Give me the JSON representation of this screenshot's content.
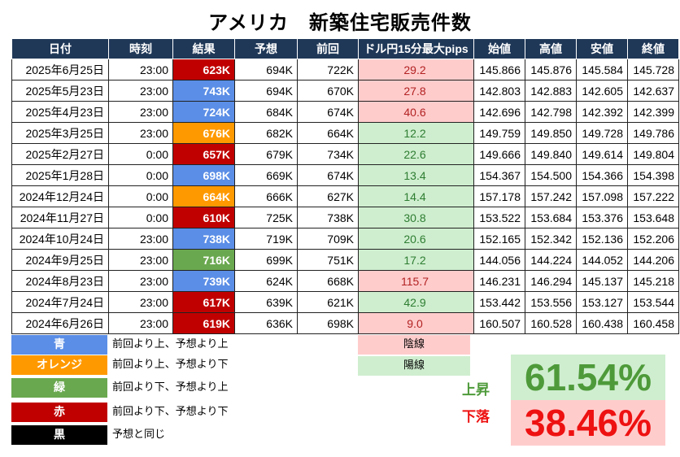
{
  "title": "アメリカ　新築住宅販売件数",
  "headers": [
    "日付",
    "時刻",
    "結果",
    "予想",
    "前回",
    "ドル円15分最大pips",
    "始値",
    "高値",
    "安値",
    "終値"
  ],
  "colors": {
    "blue": "#5b8ee6",
    "orange": "#ff9900",
    "green": "#6aa84f",
    "red": "#c00000",
    "black": "#000000",
    "header": "#1f3858",
    "yin_bg": "#ffcccc",
    "yin_text": "#b22222",
    "yang_bg": "#cfeecf",
    "yang_text": "#2e7d32",
    "up_text": "#4e9a3a",
    "down_text": "#ee1111"
  },
  "rows": [
    {
      "date": "2025年6月25日",
      "time": "23:00",
      "result": "623K",
      "result_color": "red",
      "forecast": "694K",
      "previous": "722K",
      "pips": "29.2",
      "candle": "yin",
      "open": "145.866",
      "high": "145.876",
      "low": "145.584",
      "close": "145.728"
    },
    {
      "date": "2025年5月23日",
      "time": "23:00",
      "result": "743K",
      "result_color": "blue",
      "forecast": "694K",
      "previous": "670K",
      "pips": "27.8",
      "candle": "yin",
      "open": "142.803",
      "high": "142.883",
      "low": "142.605",
      "close": "142.637"
    },
    {
      "date": "2025年4月23日",
      "time": "23:00",
      "result": "724K",
      "result_color": "blue",
      "forecast": "684K",
      "previous": "674K",
      "pips": "40.6",
      "candle": "yin",
      "open": "142.696",
      "high": "142.798",
      "low": "142.392",
      "close": "142.399"
    },
    {
      "date": "2025年3月25日",
      "time": "23:00",
      "result": "676K",
      "result_color": "orange",
      "forecast": "682K",
      "previous": "664K",
      "pips": "12.2",
      "candle": "yang",
      "open": "149.759",
      "high": "149.850",
      "low": "149.728",
      "close": "149.786"
    },
    {
      "date": "2025年2月27日",
      "time": "0:00",
      "result": "657K",
      "result_color": "red",
      "forecast": "679K",
      "previous": "734K",
      "pips": "22.6",
      "candle": "yang",
      "open": "149.666",
      "high": "149.840",
      "low": "149.614",
      "close": "149.804"
    },
    {
      "date": "2025年1月28日",
      "time": "0:00",
      "result": "698K",
      "result_color": "blue",
      "forecast": "669K",
      "previous": "674K",
      "pips": "13.4",
      "candle": "yang",
      "open": "154.367",
      "high": "154.500",
      "low": "154.366",
      "close": "154.398"
    },
    {
      "date": "2024年12月24日",
      "time": "0:00",
      "result": "664K",
      "result_color": "orange",
      "forecast": "666K",
      "previous": "627K",
      "pips": "14.4",
      "candle": "yang",
      "open": "157.178",
      "high": "157.242",
      "low": "157.098",
      "close": "157.222"
    },
    {
      "date": "2024年11月27日",
      "time": "0:00",
      "result": "610K",
      "result_color": "red",
      "forecast": "725K",
      "previous": "738K",
      "pips": "30.8",
      "candle": "yang",
      "open": "153.522",
      "high": "153.684",
      "low": "153.376",
      "close": "153.648"
    },
    {
      "date": "2024年10月24日",
      "time": "23:00",
      "result": "738K",
      "result_color": "blue",
      "forecast": "719K",
      "previous": "709K",
      "pips": "20.6",
      "candle": "yang",
      "open": "152.165",
      "high": "152.342",
      "low": "152.136",
      "close": "152.206"
    },
    {
      "date": "2024年9月25日",
      "time": "23:00",
      "result": "716K",
      "result_color": "green",
      "forecast": "699K",
      "previous": "751K",
      "pips": "17.2",
      "candle": "yang",
      "open": "144.056",
      "high": "144.224",
      "low": "144.052",
      "close": "144.206"
    },
    {
      "date": "2024年8月23日",
      "time": "23:00",
      "result": "739K",
      "result_color": "blue",
      "forecast": "624K",
      "previous": "668K",
      "pips": "115.7",
      "candle": "yin",
      "open": "146.231",
      "high": "146.294",
      "low": "145.137",
      "close": "145.218"
    },
    {
      "date": "2024年7月24日",
      "time": "23:00",
      "result": "617K",
      "result_color": "red",
      "forecast": "639K",
      "previous": "621K",
      "pips": "42.9",
      "candle": "yang",
      "open": "153.442",
      "high": "153.556",
      "low": "153.127",
      "close": "153.544"
    },
    {
      "date": "2024年6月26日",
      "time": "23:00",
      "result": "619K",
      "result_color": "red",
      "forecast": "636K",
      "previous": "698K",
      "pips": "9.0",
      "candle": "yin",
      "open": "160.507",
      "high": "160.528",
      "low": "160.438",
      "close": "160.458"
    }
  ],
  "legend": [
    {
      "label": "青",
      "color": "blue",
      "text": "前回より上、予想より上"
    },
    {
      "label": "オレンジ",
      "color": "orange",
      "text": "前回より上、予想より下"
    },
    {
      "label": "緑",
      "color": "green",
      "text": "前回より下、予想より上"
    },
    {
      "label": "赤",
      "color": "red",
      "text": "前回より下、予想より下"
    },
    {
      "label": "黒",
      "color": "black",
      "text": "予想と同じ"
    }
  ],
  "candle_legend": {
    "yin": "陰線",
    "yang": "陽線"
  },
  "stats": {
    "up_label": "上昇",
    "up_value": "61.54%",
    "down_label": "下落",
    "down_value": "38.46%"
  }
}
